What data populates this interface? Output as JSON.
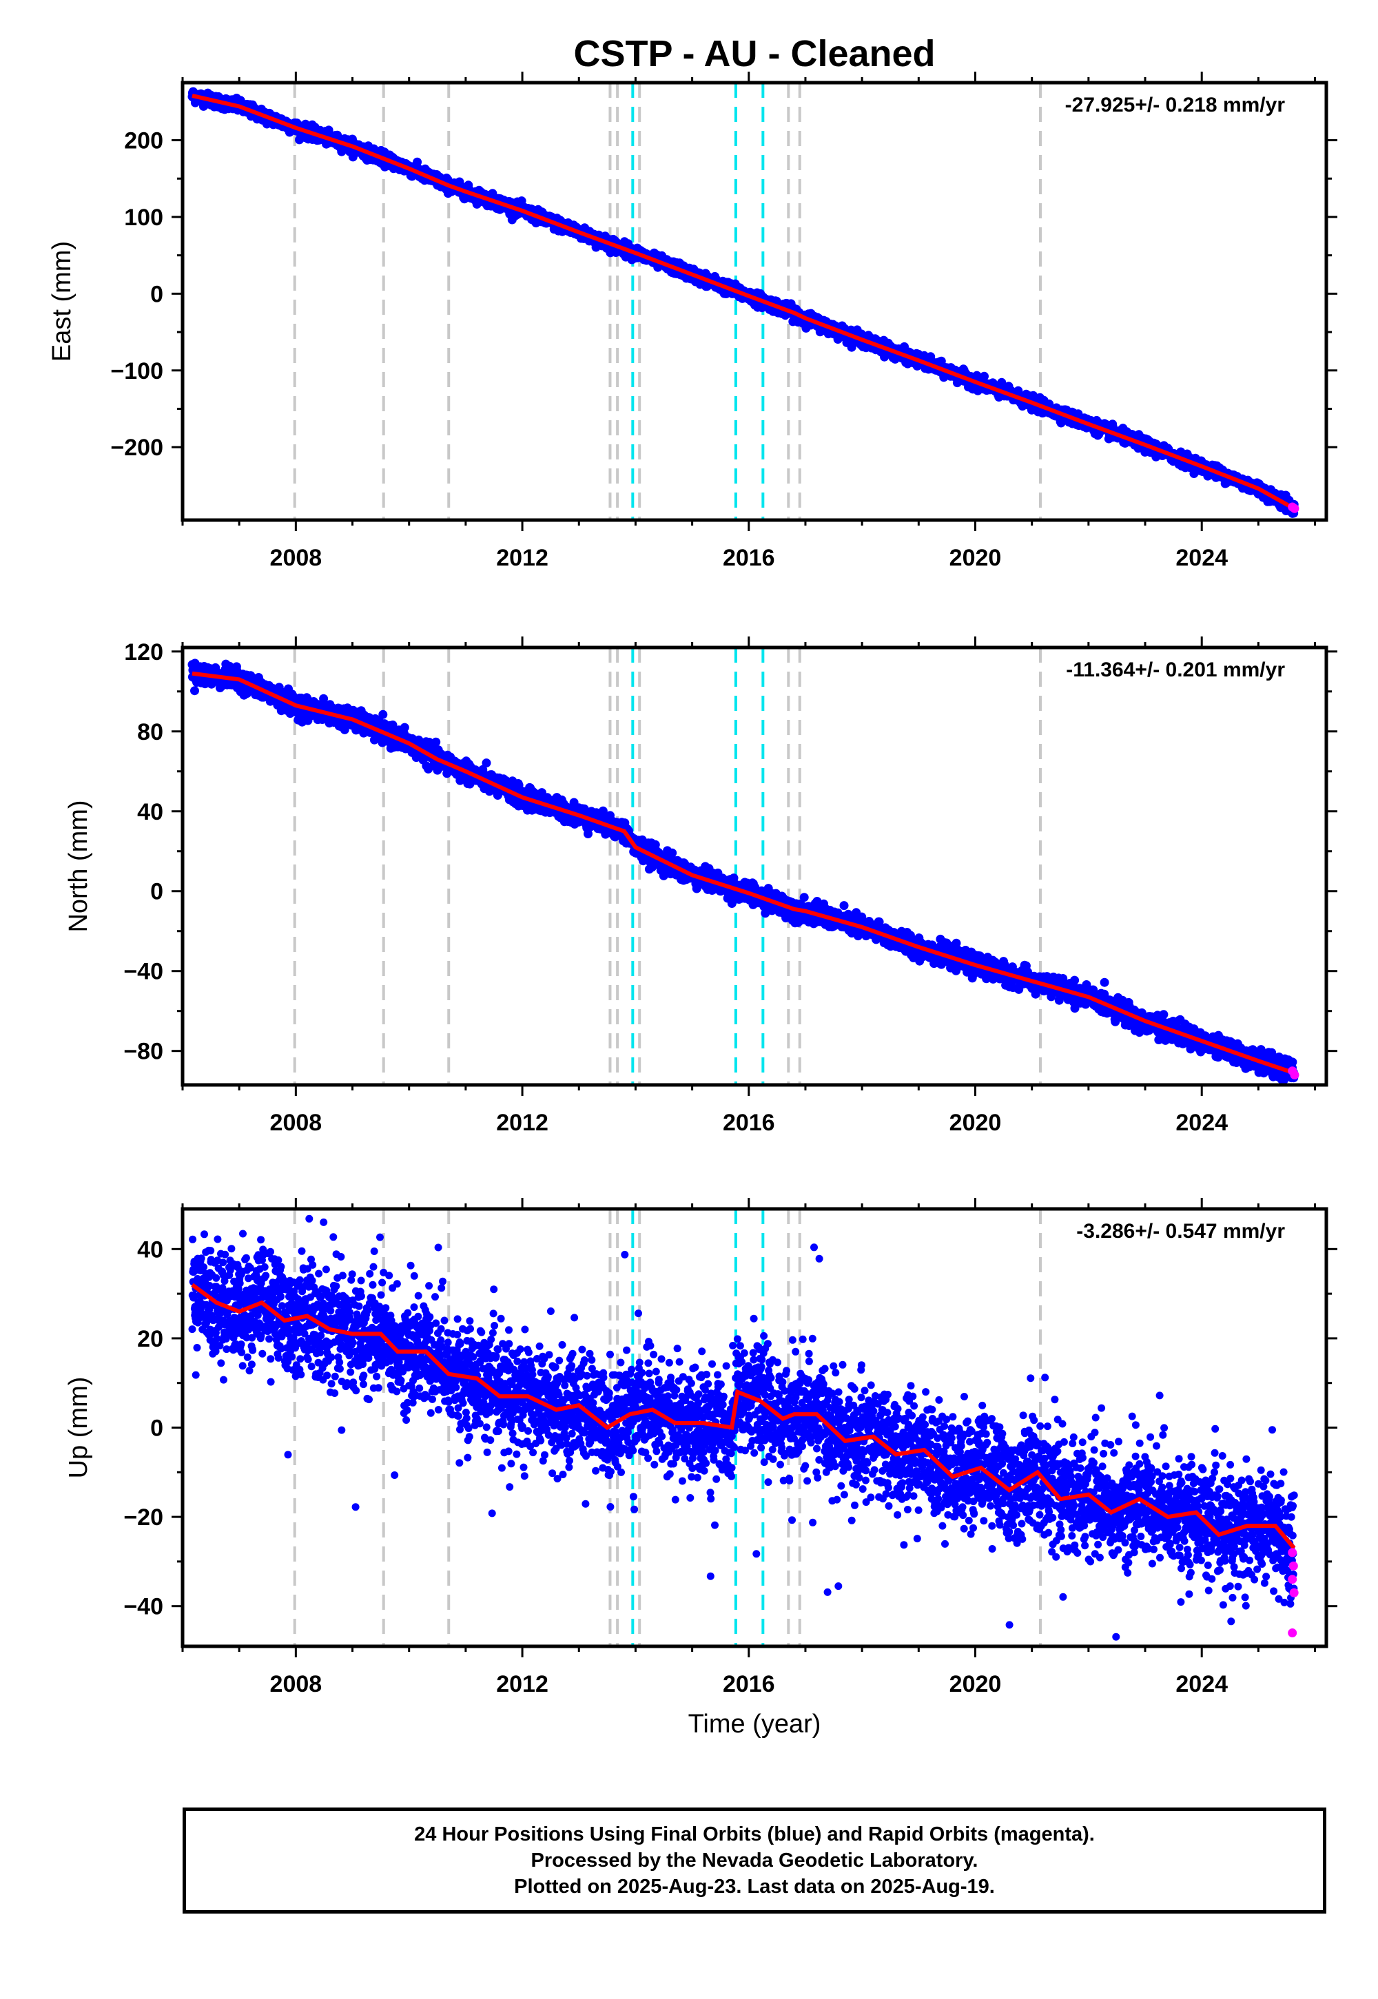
{
  "title": "CSTP  - AU - Cleaned",
  "xlabel": "Time (year)",
  "caption": {
    "line1": "24 Hour Positions Using Final Orbits (blue) and Rapid Orbits (magenta).",
    "line2": "Processed by the Nevada Geodetic Laboratory.",
    "line3": "Plotted on 2025-Aug-23. Last data on 2025-Aug-19."
  },
  "colors": {
    "final": "#0000ff",
    "rapid": "#ff00ff",
    "fit": "#ff0000",
    "gray_event": "#c8c8c8",
    "cyan_event": "#00e5ee"
  },
  "chart_data": [
    {
      "type": "scatter",
      "ylabel": "East (mm)",
      "rate_text": "-27.925+/- 0.218 mm/yr",
      "xlim": [
        2006.0,
        2026.2
      ],
      "ylim": [
        -295,
        275
      ],
      "xticks": [
        2008,
        2012,
        2016,
        2020,
        2024
      ],
      "yticks": [
        -200,
        -100,
        0,
        100,
        200
      ],
      "start": [
        2006.17,
        258
      ],
      "end": [
        2025.63,
        -280
      ],
      "scatter_spread": 4,
      "fit_line": [
        [
          2006.17,
          258
        ],
        [
          2007.0,
          244
        ],
        [
          2008.0,
          216
        ],
        [
          2009.0,
          192
        ],
        [
          2010.0,
          163
        ],
        [
          2010.7,
          141
        ],
        [
          2011.0,
          133
        ],
        [
          2012.0,
          108
        ],
        [
          2013.0,
          80
        ],
        [
          2014.0,
          53
        ],
        [
          2015.0,
          25
        ],
        [
          2016.0,
          -3
        ],
        [
          2016.8,
          -25
        ],
        [
          2017.0,
          -32
        ],
        [
          2018.0,
          -60
        ],
        [
          2019.0,
          -87
        ],
        [
          2020.0,
          -115
        ],
        [
          2021.0,
          -142
        ],
        [
          2022.0,
          -170
        ],
        [
          2023.0,
          -197
        ],
        [
          2024.0,
          -225
        ],
        [
          2025.0,
          -254
        ],
        [
          2025.63,
          -280
        ]
      ],
      "rapid_points": [
        [
          2025.6,
          -278
        ],
        [
          2025.64,
          -280
        ]
      ]
    },
    {
      "type": "scatter",
      "ylabel": "North (mm)",
      "rate_text": "-11.364+/- 0.201 mm/yr",
      "xlim": [
        2006.0,
        2026.2
      ],
      "ylim": [
        -97,
        122
      ],
      "xticks": [
        2008,
        2012,
        2016,
        2020,
        2024
      ],
      "yticks": [
        -80,
        -40,
        0,
        40,
        80,
        120
      ],
      "start": [
        2006.17,
        109
      ],
      "end": [
        2025.63,
        -91
      ],
      "scatter_spread": 2.5,
      "fit_line": [
        [
          2006.17,
          109
        ],
        [
          2007.0,
          106
        ],
        [
          2008.0,
          93
        ],
        [
          2009.0,
          86
        ],
        [
          2010.0,
          74
        ],
        [
          2010.5,
          66
        ],
        [
          2011.0,
          60
        ],
        [
          2012.0,
          47
        ],
        [
          2013.0,
          38
        ],
        [
          2013.8,
          30
        ],
        [
          2014.0,
          22
        ],
        [
          2015.0,
          8
        ],
        [
          2016.0,
          -1
        ],
        [
          2016.8,
          -9
        ],
        [
          2017.0,
          -10
        ],
        [
          2018.0,
          -18
        ],
        [
          2019.0,
          -28
        ],
        [
          2020.0,
          -37
        ],
        [
          2021.0,
          -45
        ],
        [
          2022.0,
          -53
        ],
        [
          2023.0,
          -65
        ],
        [
          2024.0,
          -75
        ],
        [
          2025.0,
          -85
        ],
        [
          2025.63,
          -91
        ]
      ],
      "rapid_points": [
        [
          2025.6,
          -90
        ],
        [
          2025.64,
          -92
        ]
      ]
    },
    {
      "type": "scatter",
      "ylabel": "Up (mm)",
      "rate_text": "-3.286+/- 0.547 mm/yr",
      "xlim": [
        2006.0,
        2026.2
      ],
      "ylim": [
        -49,
        49
      ],
      "xticks": [
        2008,
        2012,
        2016,
        2020,
        2024
      ],
      "yticks": [
        -40,
        -20,
        0,
        20,
        40
      ],
      "start": [
        2006.17,
        32
      ],
      "end": [
        2025.63,
        -27
      ],
      "scatter_spread": 6,
      "fit_line": [
        [
          2006.17,
          32
        ],
        [
          2006.6,
          28
        ],
        [
          2007.0,
          26
        ],
        [
          2007.4,
          28
        ],
        [
          2007.8,
          24
        ],
        [
          2008.2,
          25
        ],
        [
          2008.6,
          22
        ],
        [
          2009.0,
          21
        ],
        [
          2009.5,
          21
        ],
        [
          2009.8,
          17
        ],
        [
          2010.3,
          17
        ],
        [
          2010.7,
          12
        ],
        [
          2011.2,
          11
        ],
        [
          2011.6,
          7
        ],
        [
          2012.1,
          7
        ],
        [
          2012.6,
          4
        ],
        [
          2013.0,
          5
        ],
        [
          2013.5,
          0
        ],
        [
          2013.9,
          3
        ],
        [
          2014.3,
          4
        ],
        [
          2014.7,
          1
        ],
        [
          2015.2,
          1
        ],
        [
          2015.7,
          0
        ],
        [
          2015.8,
          8
        ],
        [
          2016.2,
          6
        ],
        [
          2016.6,
          2
        ],
        [
          2016.8,
          3
        ],
        [
          2017.2,
          3
        ],
        [
          2017.7,
          -3
        ],
        [
          2018.2,
          -2
        ],
        [
          2018.6,
          -6
        ],
        [
          2019.1,
          -5
        ],
        [
          2019.6,
          -11
        ],
        [
          2020.1,
          -9
        ],
        [
          2020.6,
          -14
        ],
        [
          2021.1,
          -10
        ],
        [
          2021.5,
          -16
        ],
        [
          2022.0,
          -15
        ],
        [
          2022.4,
          -19
        ],
        [
          2022.9,
          -16
        ],
        [
          2023.4,
          -20
        ],
        [
          2023.9,
          -19
        ],
        [
          2024.3,
          -24
        ],
        [
          2024.8,
          -22
        ],
        [
          2025.3,
          -22
        ],
        [
          2025.63,
          -27
        ]
      ],
      "rapid_points": [
        [
          2025.6,
          -28
        ],
        [
          2025.62,
          -31
        ],
        [
          2025.6,
          -34
        ],
        [
          2025.63,
          -37
        ],
        [
          2025.6,
          -46
        ]
      ]
    }
  ],
  "event_lines": {
    "gray": [
      2007.98,
      2009.55,
      2010.7,
      2013.55,
      2013.68,
      2014.07,
      2016.7,
      2016.9,
      2021.15
    ],
    "cyan": [
      2013.95,
      2015.77,
      2016.25
    ]
  }
}
